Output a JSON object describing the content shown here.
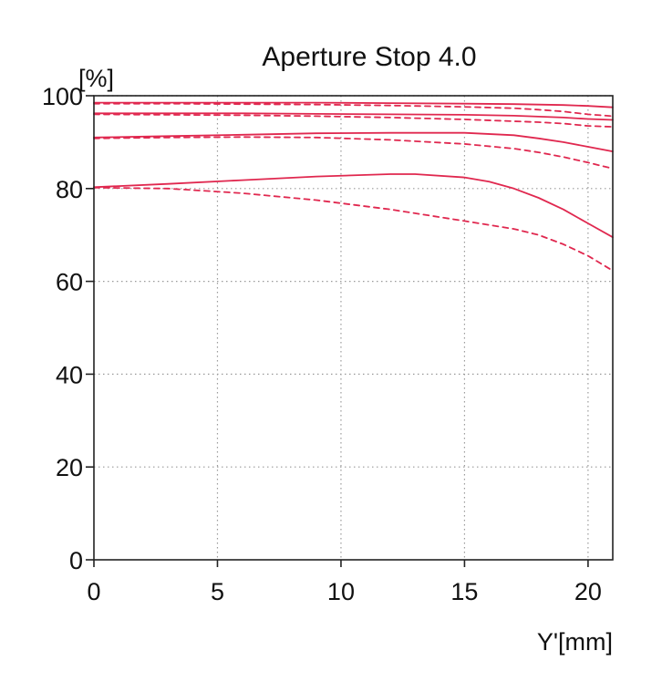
{
  "chart_data": {
    "type": "line",
    "title": "Aperture Stop 4.0",
    "xlabel": "Y'[mm]",
    "ylabel": "[%]",
    "xlim": [
      0,
      21
    ],
    "ylim": [
      0,
      100
    ],
    "xticks": [
      0,
      5,
      10,
      15,
      20
    ],
    "yticks": [
      0,
      20,
      40,
      60,
      80,
      100
    ],
    "grid": true,
    "colors": {
      "series": "#e0284f",
      "grid": "#9a9a9a",
      "axis": "#222222"
    },
    "series": [
      {
        "style": "solid",
        "x": [
          0,
          3,
          6,
          9,
          12,
          15,
          17,
          18,
          19,
          20,
          21
        ],
        "values": [
          98.5,
          98.5,
          98.5,
          98.5,
          98.4,
          98.3,
          98.2,
          98.1,
          98.0,
          97.8,
          97.5
        ]
      },
      {
        "style": "dashed",
        "x": [
          0,
          3,
          6,
          9,
          12,
          15,
          17,
          18,
          19,
          20,
          21
        ],
        "values": [
          98.3,
          98.3,
          98.2,
          98.1,
          97.9,
          97.6,
          97.3,
          97.0,
          96.6,
          96.0,
          95.6
        ]
      },
      {
        "style": "solid",
        "x": [
          0,
          3,
          6,
          9,
          12,
          15,
          17,
          18,
          19,
          20,
          21
        ],
        "values": [
          96.2,
          96.2,
          96.2,
          96.1,
          96.0,
          95.9,
          95.7,
          95.5,
          95.3,
          95.0,
          94.8
        ]
      },
      {
        "style": "dashed",
        "x": [
          0,
          3,
          6,
          9,
          12,
          15,
          17,
          18,
          19,
          20,
          21
        ],
        "values": [
          96.0,
          95.9,
          95.8,
          95.6,
          95.3,
          94.9,
          94.5,
          94.3,
          94.0,
          93.5,
          93.3
        ]
      },
      {
        "style": "solid",
        "x": [
          0,
          3,
          6,
          9,
          12,
          15,
          17,
          18,
          19,
          20,
          21
        ],
        "values": [
          91.0,
          91.3,
          91.6,
          91.9,
          92.0,
          92.0,
          91.5,
          90.8,
          90.0,
          89.0,
          88.0
        ]
      },
      {
        "style": "dashed",
        "x": [
          0,
          3,
          6,
          9,
          12,
          15,
          17,
          18,
          19,
          20,
          21
        ],
        "values": [
          90.8,
          91.0,
          91.1,
          91.0,
          90.5,
          89.6,
          88.6,
          87.8,
          86.8,
          85.6,
          84.3
        ]
      },
      {
        "style": "solid",
        "x": [
          0,
          3,
          6,
          9,
          12,
          13,
          15,
          16,
          17,
          18,
          19,
          20,
          21
        ],
        "values": [
          80.3,
          81.0,
          81.8,
          82.6,
          83.1,
          83.1,
          82.4,
          81.5,
          80.0,
          78.0,
          75.5,
          72.5,
          69.5
        ]
      },
      {
        "style": "dashed",
        "x": [
          0,
          3,
          6,
          9,
          12,
          15,
          17,
          18,
          19,
          20,
          21
        ],
        "values": [
          80.2,
          80.0,
          79.0,
          77.5,
          75.5,
          73.0,
          71.3,
          70.0,
          68.0,
          65.5,
          62.3
        ]
      }
    ]
  }
}
